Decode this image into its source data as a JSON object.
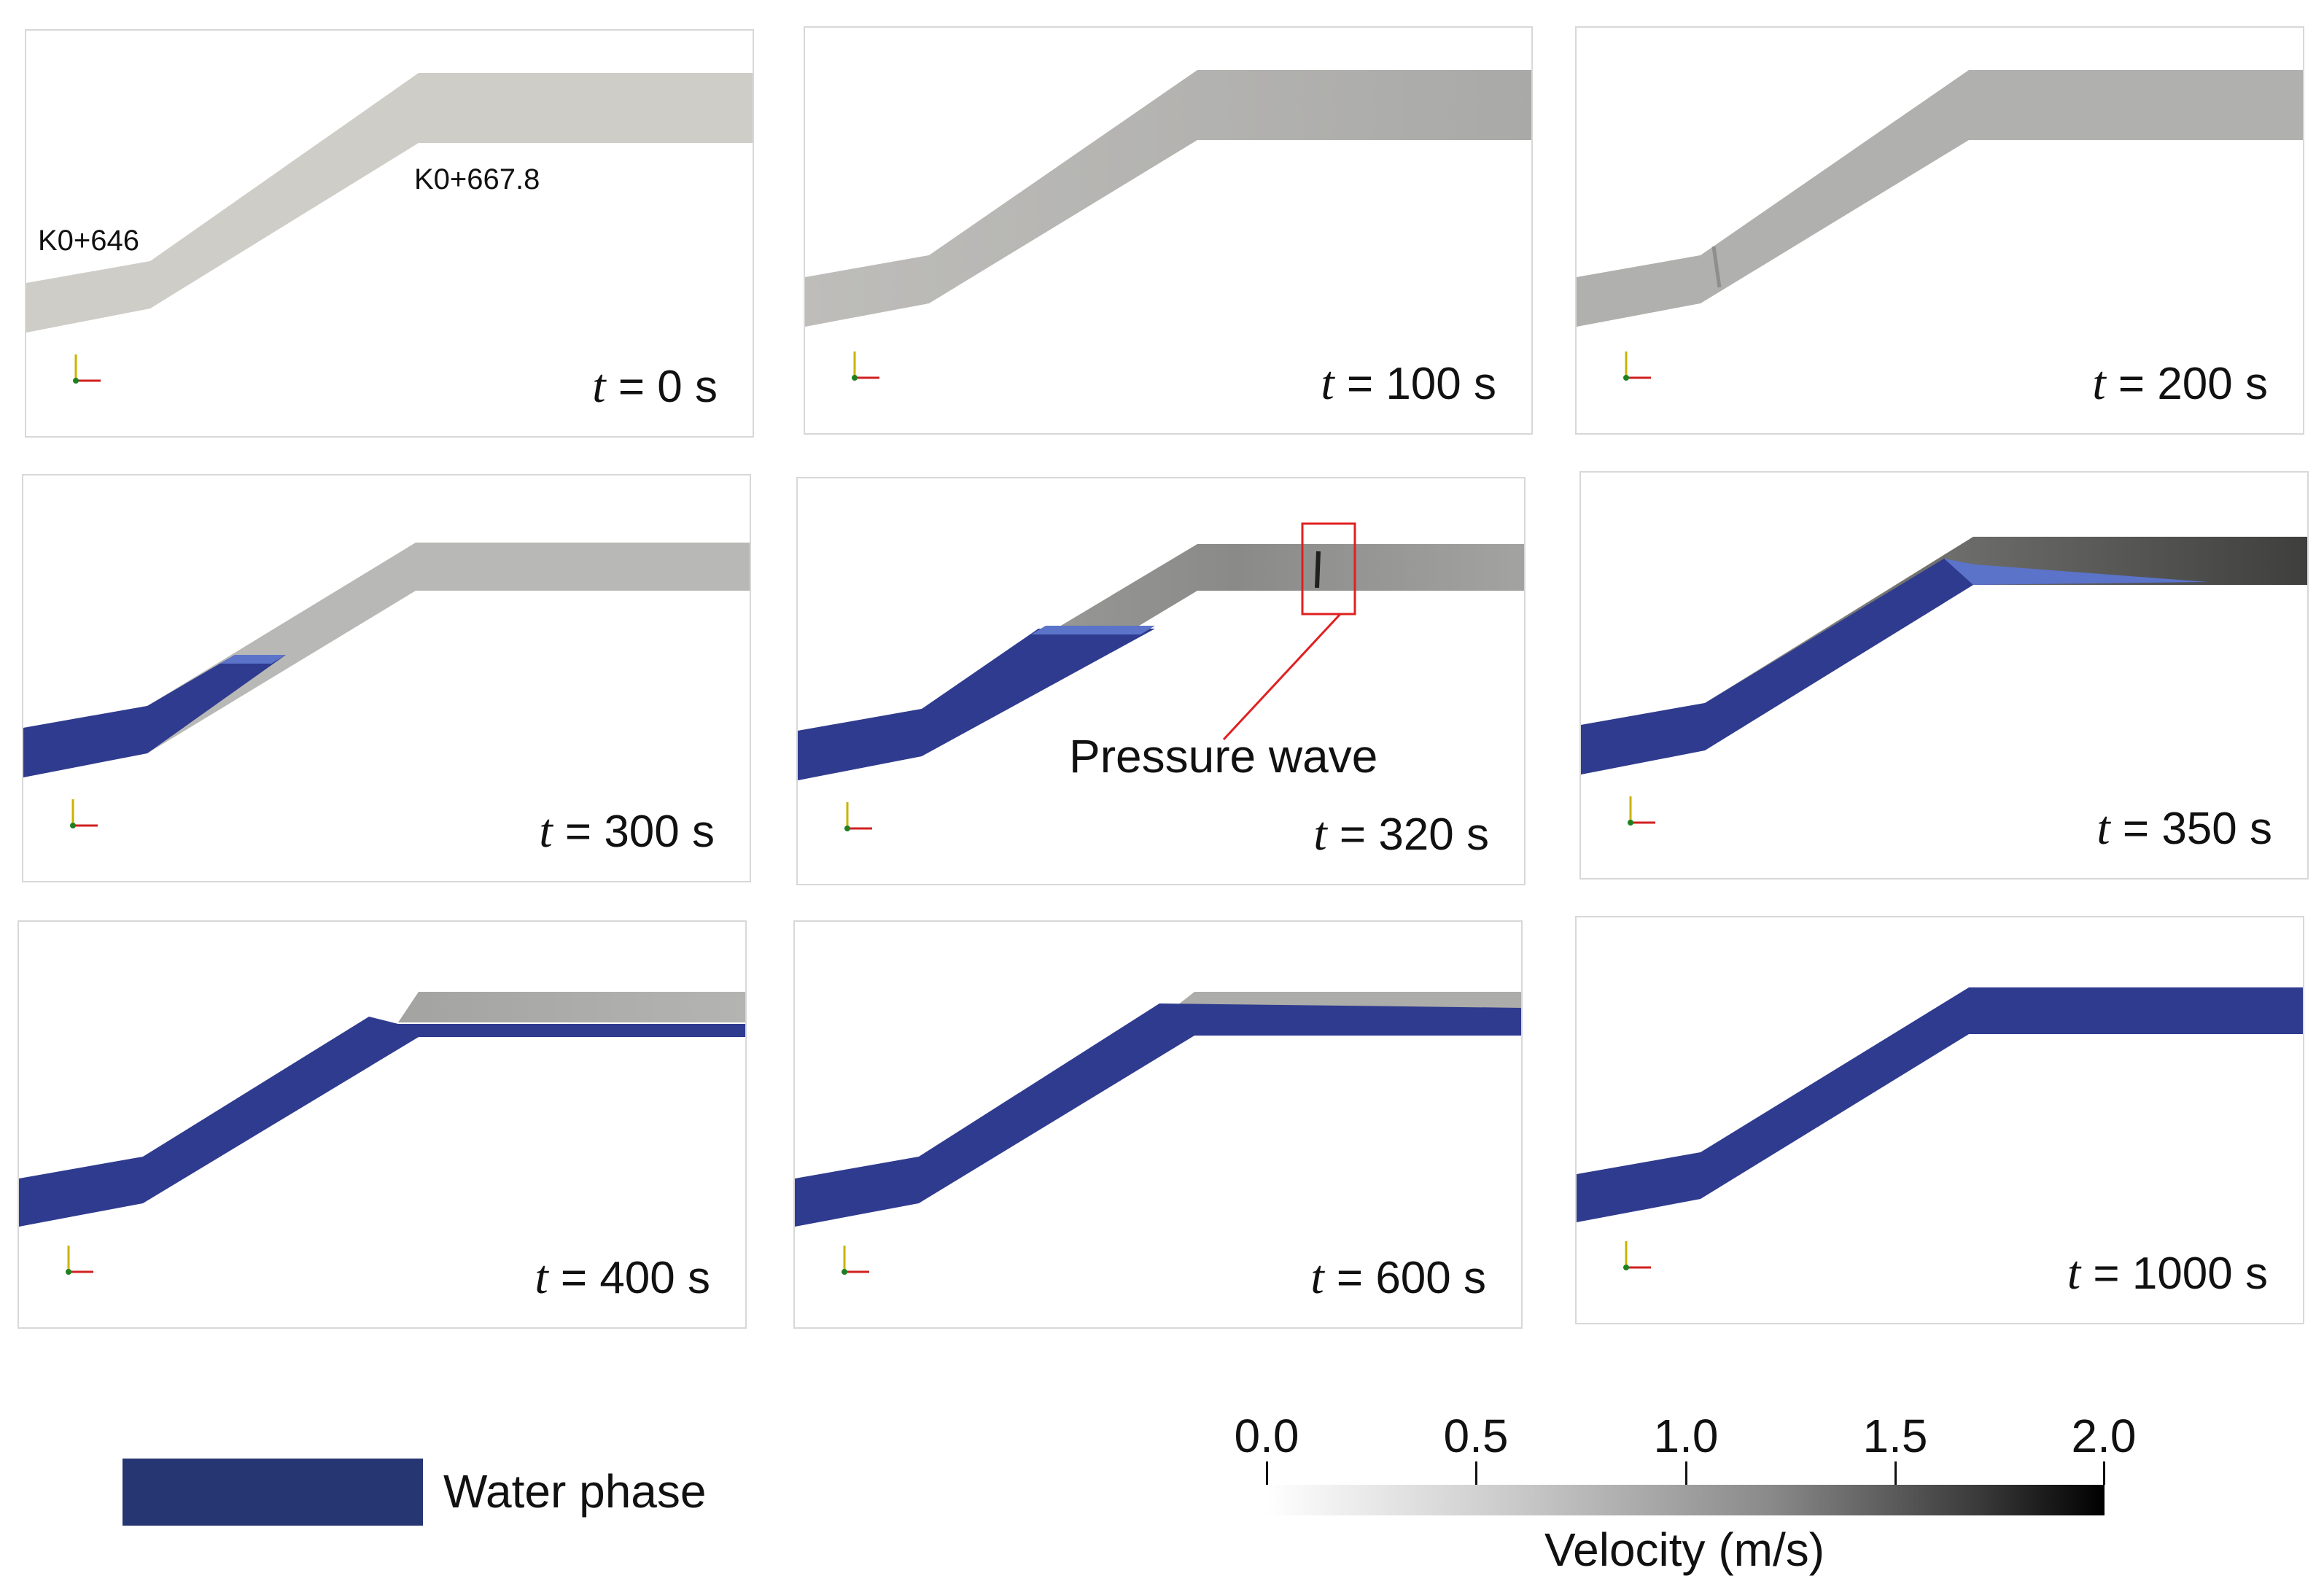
{
  "panels": [
    {
      "time_var": "t",
      "time_value": "= 0 s",
      "water": "none"
    },
    {
      "time_var": "t",
      "time_value": "= 100 s",
      "water": "none"
    },
    {
      "time_var": "t",
      "time_value": "= 200 s",
      "water": "none"
    },
    {
      "time_var": "t",
      "time_value": "= 300 s",
      "water": "lower-slope"
    },
    {
      "time_var": "t",
      "time_value": "= 320 s",
      "water": "upper-slope"
    },
    {
      "time_var": "t",
      "time_value": "= 350 s",
      "water": "full-slope"
    },
    {
      "time_var": "t",
      "time_value": "= 400 s",
      "water": "partial-top"
    },
    {
      "time_var": "t",
      "time_value": "= 600 s",
      "water": "mostly-full"
    },
    {
      "time_var": "t",
      "time_value": "= 1000 s",
      "water": "full"
    }
  ],
  "chainage_labels": {
    "lower_bend": "K0+646",
    "upper_bend": "K0+667.8"
  },
  "annotation": {
    "text": "Pressure wave"
  },
  "legend": {
    "label": "Water phase",
    "color": "#263672"
  },
  "colorbar": {
    "title": "Velocity (m/s)",
    "ticks": [
      "0.0",
      "0.5",
      "1.0",
      "1.5",
      "2.0"
    ],
    "min_color": "#ffffff",
    "max_color": "#000000"
  },
  "colors": {
    "air": "#b5b5b3",
    "water": "#2f3b8f",
    "highlight_box": "#e02020"
  }
}
